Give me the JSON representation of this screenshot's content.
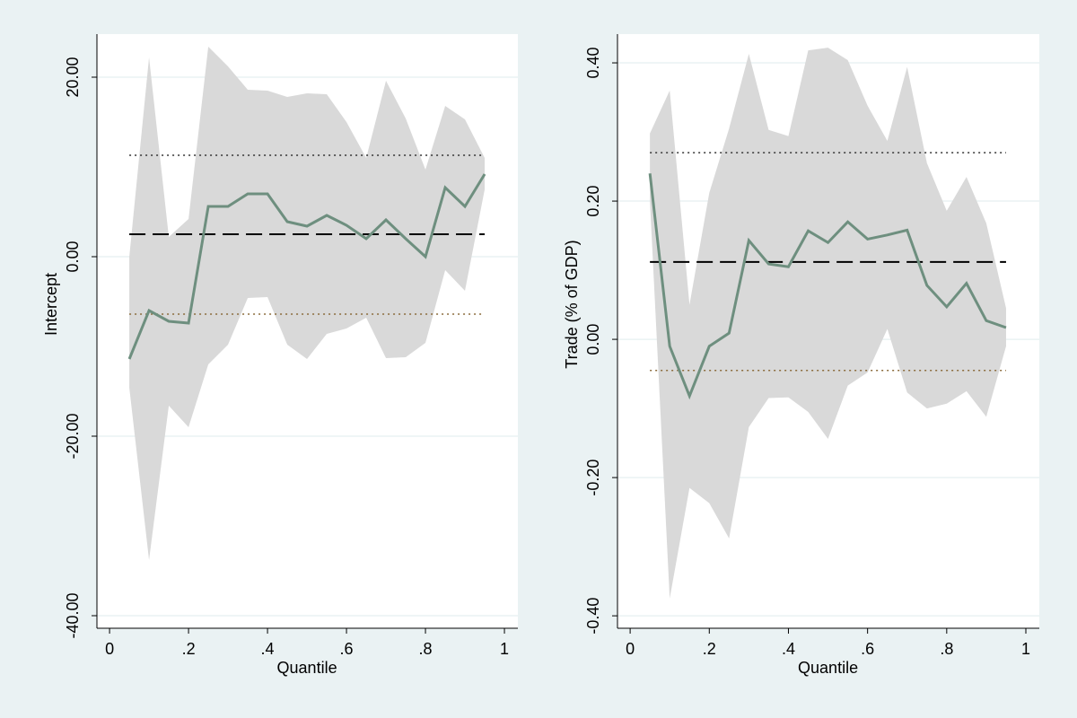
{
  "chart_data": [
    {
      "type": "line",
      "x_label": "Quantile",
      "y_label": "Intercept",
      "x": [
        0.05,
        0.1,
        0.15,
        0.2,
        0.25,
        0.3,
        0.35,
        0.4,
        0.45,
        0.5,
        0.55,
        0.6,
        0.65,
        0.7,
        0.75,
        0.8,
        0.85,
        0.9,
        0.95
      ],
      "series": [
        {
          "color": "#6e8f7f",
          "values": [
            -11.4,
            -6.0,
            -7.2,
            -7.4,
            5.6,
            5.6,
            7.0,
            7.0,
            3.9,
            3.4,
            4.6,
            3.5,
            2.0,
            4.1,
            2.0,
            0.0,
            7.7,
            5.6,
            9.2
          ]
        }
      ],
      "band": {
        "color": "#d9d9d9",
        "upper": [
          0.0,
          22.2,
          2.2,
          4.2,
          23.4,
          21.2,
          18.6,
          18.5,
          17.8,
          18.2,
          18.1,
          15.0,
          11.0,
          19.6,
          15.4,
          9.7,
          16.8,
          15.3,
          11.0
        ],
        "lower": [
          -14.6,
          -33.8,
          -16.6,
          -19.0,
          -12.0,
          -9.8,
          -4.6,
          -4.5,
          -9.8,
          -11.4,
          -8.6,
          -8.0,
          -6.8,
          -11.3,
          -11.2,
          -9.6,
          -1.5,
          -3.8,
          7.5
        ]
      },
      "ols": {
        "value": 2.5,
        "upper": 11.3,
        "lower": -6.4
      },
      "xlim": [
        -0.032,
        1.034
      ],
      "ylim": [
        -41.4,
        24.8
      ],
      "xticks": [
        0,
        {
          "value": 0.2,
          "label": ".2"
        },
        {
          "value": 0.4,
          "label": ".4"
        },
        {
          "value": 0.6,
          "label": ".6"
        },
        {
          "value": 0.8,
          "label": ".8"
        },
        1
      ],
      "yticks": [
        {
          "value": -40,
          "label": "-40.00"
        },
        {
          "value": -20,
          "label": "-20.00"
        },
        {
          "value": 0,
          "label": "0.00"
        },
        {
          "value": 20,
          "label": "20.00"
        }
      ],
      "grid": true
    },
    {
      "type": "line",
      "x_label": "Quantile",
      "y_label": "Trade (% of GDP)",
      "x": [
        0.05,
        0.1,
        0.15,
        0.2,
        0.25,
        0.3,
        0.35,
        0.4,
        0.45,
        0.5,
        0.55,
        0.6,
        0.65,
        0.7,
        0.75,
        0.8,
        0.85,
        0.9,
        0.95
      ],
      "series": [
        {
          "color": "#6e8f7f",
          "values": [
            0.24,
            -0.01,
            -0.082,
            -0.01,
            0.009,
            0.143,
            0.109,
            0.105,
            0.157,
            0.14,
            0.17,
            0.145,
            0.151,
            0.158,
            0.078,
            0.047,
            0.081,
            0.027,
            0.017
          ]
        }
      ],
      "band": {
        "color": "#d9d9d9",
        "upper": [
          0.298,
          0.36,
          0.05,
          0.212,
          0.305,
          0.413,
          0.303,
          0.294,
          0.418,
          0.422,
          0.404,
          0.338,
          0.287,
          0.394,
          0.255,
          0.186,
          0.235,
          0.168,
          0.045
        ],
        "lower": [
          0.2,
          -0.375,
          -0.215,
          -0.237,
          -0.288,
          -0.127,
          -0.085,
          -0.084,
          -0.105,
          -0.144,
          -0.067,
          -0.048,
          0.015,
          -0.077,
          -0.1,
          -0.093,
          -0.075,
          -0.112,
          -0.01
        ]
      },
      "ols": {
        "value": 0.112,
        "upper": 0.27,
        "lower": -0.045
      },
      "xlim": [
        -0.032,
        1.034
      ],
      "ylim": [
        -0.418,
        0.4416
      ],
      "xticks": [
        0,
        {
          "value": 0.2,
          "label": ".2"
        },
        {
          "value": 0.4,
          "label": ".4"
        },
        {
          "value": 0.6,
          "label": ".6"
        },
        {
          "value": 0.8,
          "label": ".8"
        },
        1
      ],
      "yticks": [
        {
          "value": -0.4,
          "label": "-0.40"
        },
        {
          "value": -0.2,
          "label": "-0.20"
        },
        {
          "value": 0,
          "label": "0.00"
        },
        {
          "value": 0.2,
          "label": "0.20"
        },
        {
          "value": 0.4,
          "label": "0.40"
        }
      ],
      "grid": true
    }
  ]
}
